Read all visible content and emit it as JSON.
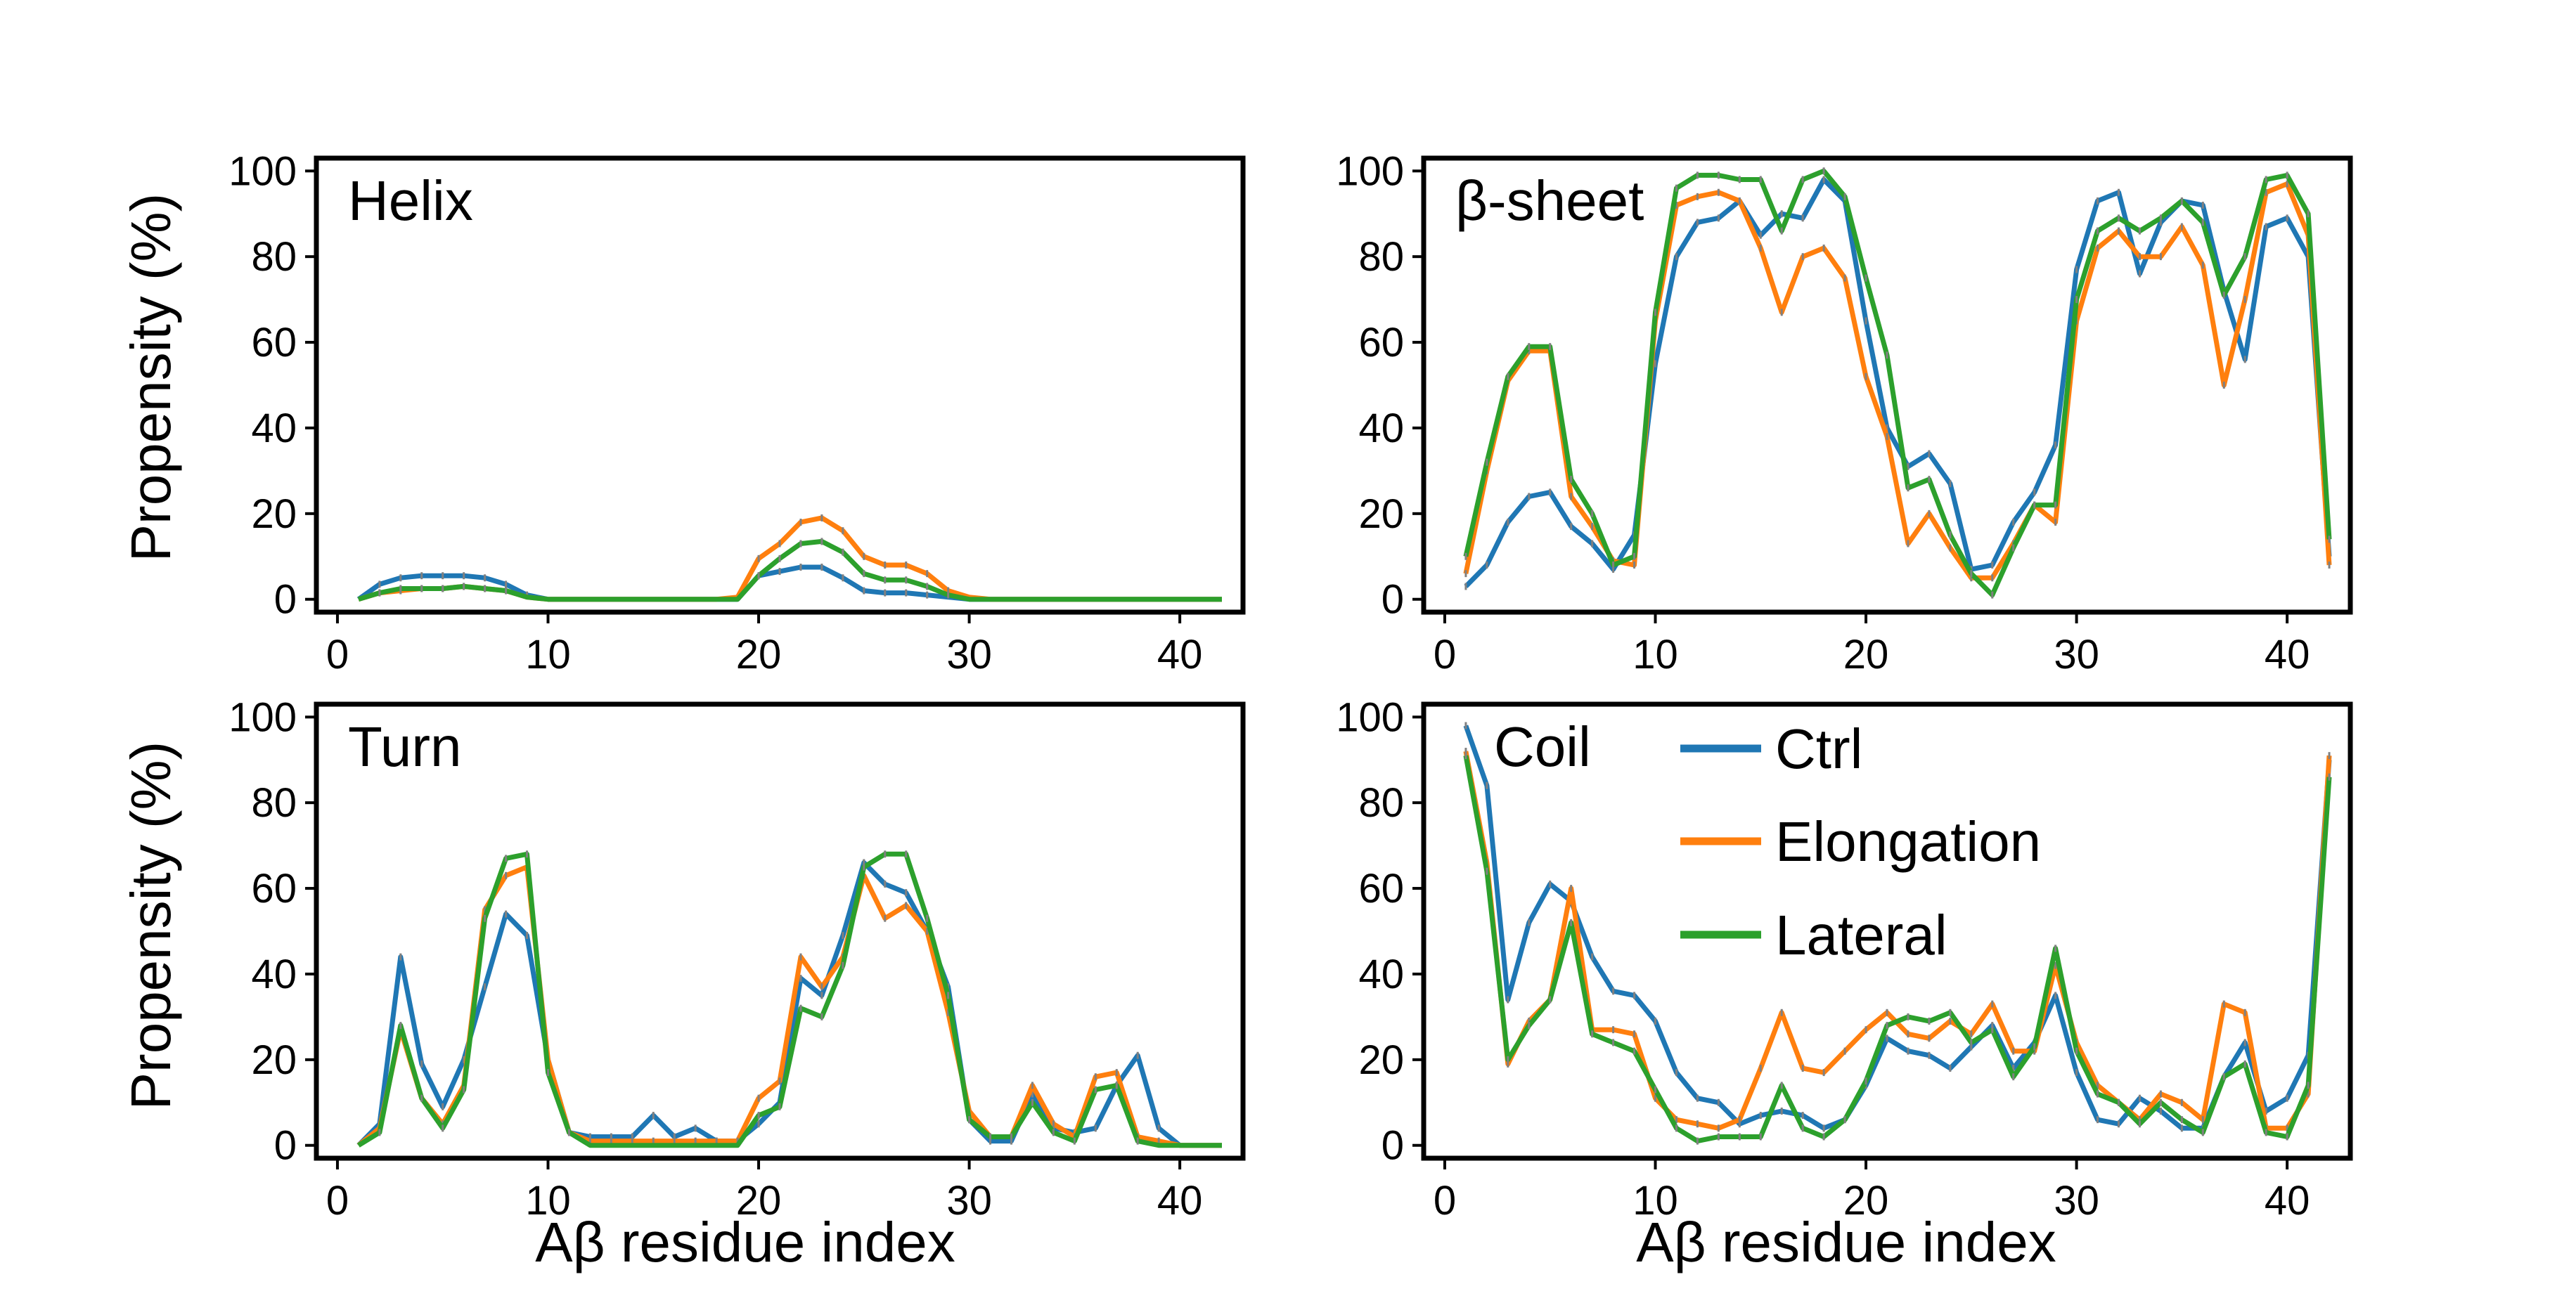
{
  "figure": {
    "ylabel": "Propensity (%)",
    "xlabel": "Aβ residue index",
    "legend": [
      "Ctrl",
      "Elongation",
      "Lateral"
    ]
  },
  "colors": {
    "Ctrl": "#1f77b4",
    "Elongation": "#ff7f0e",
    "Lateral": "#2ca02c",
    "errorbar": "#808080"
  },
  "chart_data": [
    {
      "type": "line",
      "title": "Helix",
      "xlim": [
        -1,
        43
      ],
      "ylim": [
        -3,
        103
      ],
      "xticks": [
        0,
        10,
        20,
        30,
        40
      ],
      "yticks": [
        0,
        20,
        40,
        60,
        80,
        100
      ],
      "ylabel": "Propensity (%)",
      "xlabel": "",
      "legend": false,
      "x": [
        1,
        2,
        3,
        4,
        5,
        6,
        7,
        8,
        9,
        10,
        11,
        12,
        13,
        14,
        15,
        16,
        17,
        18,
        19,
        20,
        21,
        22,
        23,
        24,
        25,
        26,
        27,
        28,
        29,
        30,
        31,
        32,
        33,
        34,
        35,
        36,
        37,
        38,
        39,
        40,
        41,
        42
      ],
      "series": [
        {
          "name": "Ctrl",
          "values": [
            0,
            3.5,
            5,
            5.5,
            5.5,
            5.5,
            5,
            3.5,
            1,
            0,
            0,
            0,
            0,
            0,
            0,
            0,
            0,
            0,
            0,
            5.5,
            6.5,
            7.5,
            7.5,
            5,
            2,
            1.5,
            1.5,
            1,
            0.5,
            0,
            0,
            0,
            0,
            0,
            0,
            0,
            0,
            0,
            0,
            0,
            0,
            0
          ]
        },
        {
          "name": "Elongation",
          "values": [
            0,
            1.5,
            2,
            2.5,
            2.5,
            3,
            2.5,
            2,
            0.5,
            0,
            0,
            0,
            0,
            0,
            0,
            0,
            0,
            0,
            0.5,
            9.5,
            13,
            18,
            19,
            16,
            10,
            8,
            8,
            6,
            2,
            0.5,
            0,
            0,
            0,
            0,
            0,
            0,
            0,
            0,
            0,
            0,
            0,
            0
          ]
        },
        {
          "name": "Lateral",
          "values": [
            0,
            1.5,
            2.5,
            2.5,
            2.5,
            3,
            2.5,
            2,
            0.5,
            0,
            0,
            0,
            0,
            0,
            0,
            0,
            0,
            0,
            0,
            5.5,
            9.5,
            13,
            13.5,
            11,
            6,
            4.5,
            4.5,
            3,
            1,
            0,
            0,
            0,
            0,
            0,
            0,
            0,
            0,
            0,
            0,
            0,
            0,
            0
          ]
        }
      ]
    },
    {
      "type": "line",
      "title": "β-sheet",
      "xlim": [
        -1,
        43
      ],
      "ylim": [
        -3,
        103
      ],
      "xticks": [
        0,
        10,
        20,
        30,
        40
      ],
      "yticks": [
        0,
        20,
        40,
        60,
        80,
        100
      ],
      "ylabel": "",
      "xlabel": "",
      "legend": false,
      "x": [
        1,
        2,
        3,
        4,
        5,
        6,
        7,
        8,
        9,
        10,
        11,
        12,
        13,
        14,
        15,
        16,
        17,
        18,
        19,
        20,
        21,
        22,
        23,
        24,
        25,
        26,
        27,
        28,
        29,
        30,
        31,
        32,
        33,
        34,
        35,
        36,
        37,
        38,
        39,
        40,
        41,
        42
      ],
      "series": [
        {
          "name": "Ctrl",
          "values": [
            3,
            8,
            18,
            24,
            25,
            17,
            13,
            7,
            15,
            55,
            80,
            88,
            89,
            93,
            85,
            90,
            89,
            98,
            93,
            65,
            40,
            31,
            34,
            27,
            7,
            8,
            18,
            25,
            36,
            77,
            93,
            95,
            76,
            88,
            93,
            92,
            72,
            56,
            87,
            89,
            80,
            10
          ]
        },
        {
          "name": "Elongation",
          "values": [
            6,
            30,
            51,
            58,
            58,
            24,
            17,
            9,
            8,
            65,
            92,
            94,
            95,
            93,
            82,
            67,
            80,
            82,
            75,
            52,
            38,
            13,
            20,
            12,
            5,
            5,
            13,
            22,
            18,
            65,
            82,
            86,
            80,
            80,
            87,
            78,
            50,
            70,
            95,
            97,
            85,
            8
          ]
        },
        {
          "name": "Lateral",
          "values": [
            10,
            32,
            52,
            59,
            59,
            28,
            20,
            8,
            10,
            67,
            96,
            99,
            99,
            98,
            98,
            86,
            98,
            100,
            94,
            75,
            57,
            26,
            28,
            15,
            6,
            1,
            12,
            22,
            22,
            70,
            86,
            89,
            86,
            89,
            93,
            88,
            71,
            80,
            98,
            99,
            90,
            14
          ]
        }
      ]
    },
    {
      "type": "line",
      "title": "Turn",
      "xlim": [
        -1,
        43
      ],
      "ylim": [
        -3,
        103
      ],
      "xticks": [
        0,
        10,
        20,
        30,
        40
      ],
      "yticks": [
        0,
        20,
        40,
        60,
        80,
        100
      ],
      "ylabel": "Propensity (%)",
      "xlabel": "Aβ residue index",
      "legend": false,
      "x": [
        1,
        2,
        3,
        4,
        5,
        6,
        7,
        8,
        9,
        10,
        11,
        12,
        13,
        14,
        15,
        16,
        17,
        18,
        19,
        20,
        21,
        22,
        23,
        24,
        25,
        26,
        27,
        28,
        29,
        30,
        31,
        32,
        33,
        34,
        35,
        36,
        37,
        38,
        39,
        40,
        41,
        42
      ],
      "series": [
        {
          "name": "Ctrl",
          "values": [
            0,
            5,
            44,
            19,
            9,
            20,
            37,
            54,
            49,
            20,
            3,
            2,
            2,
            2,
            7,
            2,
            4,
            1,
            1,
            5,
            10,
            39,
            35,
            49,
            66,
            61,
            59,
            50,
            37,
            6,
            1,
            1,
            12,
            4,
            3,
            4,
            14,
            21,
            4,
            0,
            0,
            0
          ]
        },
        {
          "name": "Elongation",
          "values": [
            0,
            4,
            27,
            11,
            5,
            14,
            55,
            63,
            65,
            20,
            3,
            1,
            1,
            1,
            1,
            1,
            1,
            1,
            1,
            11,
            15,
            44,
            37,
            44,
            63,
            53,
            56,
            50,
            31,
            8,
            2,
            2,
            14,
            5,
            2,
            16,
            17,
            2,
            1,
            0,
            0,
            0
          ]
        },
        {
          "name": "Lateral",
          "values": [
            0,
            3,
            28,
            11,
            4,
            13,
            53,
            67,
            68,
            17,
            3,
            0,
            0,
            0,
            0,
            0,
            0,
            0,
            0,
            7,
            9,
            32,
            30,
            42,
            65,
            68,
            68,
            53,
            35,
            6,
            2,
            2,
            10,
            3,
            1,
            13,
            14,
            1,
            0,
            0,
            0,
            0
          ]
        }
      ]
    },
    {
      "type": "line",
      "title": "Coil",
      "xlim": [
        -1,
        43
      ],
      "ylim": [
        -3,
        103
      ],
      "xticks": [
        0,
        10,
        20,
        30,
        40
      ],
      "yticks": [
        0,
        20,
        40,
        60,
        80,
        100
      ],
      "ylabel": "",
      "xlabel": "Aβ residue index",
      "legend": true,
      "legend_position": "top-center",
      "x": [
        1,
        2,
        3,
        4,
        5,
        6,
        7,
        8,
        9,
        10,
        11,
        12,
        13,
        14,
        15,
        16,
        17,
        18,
        19,
        20,
        21,
        22,
        23,
        24,
        25,
        26,
        27,
        28,
        29,
        30,
        31,
        32,
        33,
        34,
        35,
        36,
        37,
        38,
        39,
        40,
        41,
        42
      ],
      "series": [
        {
          "name": "Ctrl",
          "values": [
            98,
            84,
            34,
            52,
            61,
            57,
            44,
            36,
            35,
            29,
            17,
            11,
            10,
            5,
            7,
            8,
            7,
            4,
            6,
            14,
            25,
            22,
            21,
            18,
            23,
            28,
            18,
            24,
            35,
            17,
            6,
            5,
            11,
            8,
            4,
            4,
            16,
            24,
            8,
            11,
            21,
            90
          ]
        },
        {
          "name": "Elongation",
          "values": [
            92,
            66,
            19,
            29,
            34,
            60,
            27,
            27,
            26,
            11,
            6,
            5,
            4,
            6,
            18,
            31,
            18,
            17,
            22,
            27,
            31,
            26,
            25,
            29,
            26,
            33,
            22,
            22,
            42,
            24,
            14,
            10,
            6,
            12,
            10,
            6,
            33,
            31,
            4,
            4,
            12,
            91
          ]
        },
        {
          "name": "Lateral",
          "values": [
            91,
            64,
            20,
            28,
            34,
            52,
            26,
            24,
            22,
            13,
            4,
            1,
            2,
            2,
            2,
            14,
            4,
            2,
            6,
            15,
            28,
            30,
            29,
            31,
            24,
            27,
            16,
            23,
            46,
            22,
            12,
            10,
            5,
            10,
            6,
            3,
            16,
            19,
            3,
            2,
            14,
            86
          ]
        }
      ]
    }
  ]
}
